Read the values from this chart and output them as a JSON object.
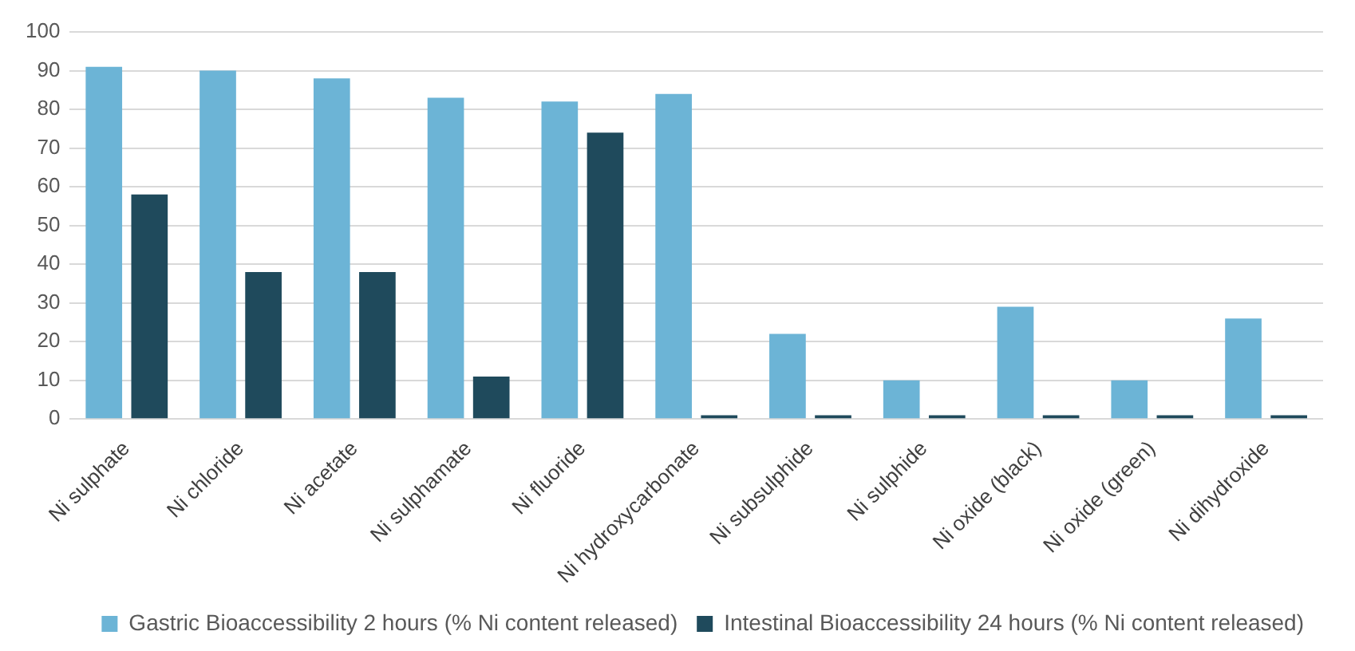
{
  "chart_data": {
    "type": "bar",
    "categories": [
      "Ni sulphate",
      "Ni chloride",
      "Ni acetate",
      "Ni sulphamate",
      "Ni fluoride",
      "Ni hydroxycarbonate",
      "Ni subsulphide",
      "Ni sulphide",
      "Ni oxide (black)",
      "Ni oxide (green)",
      "Ni dihydroxide"
    ],
    "series": [
      {
        "name": "Gastric Bioaccessibility 2 hours (% Ni content released)",
        "color": "#6cb4d6",
        "values": [
          91,
          90,
          88,
          83,
          82,
          84,
          22,
          10,
          29,
          10,
          26
        ]
      },
      {
        "name": "Intestinal Bioaccessibility 24 hours (% Ni content released)",
        "color": "#1f4a5c",
        "values": [
          58,
          38,
          38,
          11,
          74,
          1,
          1,
          1,
          1,
          1,
          1
        ]
      }
    ],
    "ylim": [
      0,
      100
    ],
    "yticks": [
      0,
      10,
      20,
      30,
      40,
      50,
      60,
      70,
      80,
      90,
      100
    ],
    "grid": "y",
    "legend": "bottom right"
  }
}
